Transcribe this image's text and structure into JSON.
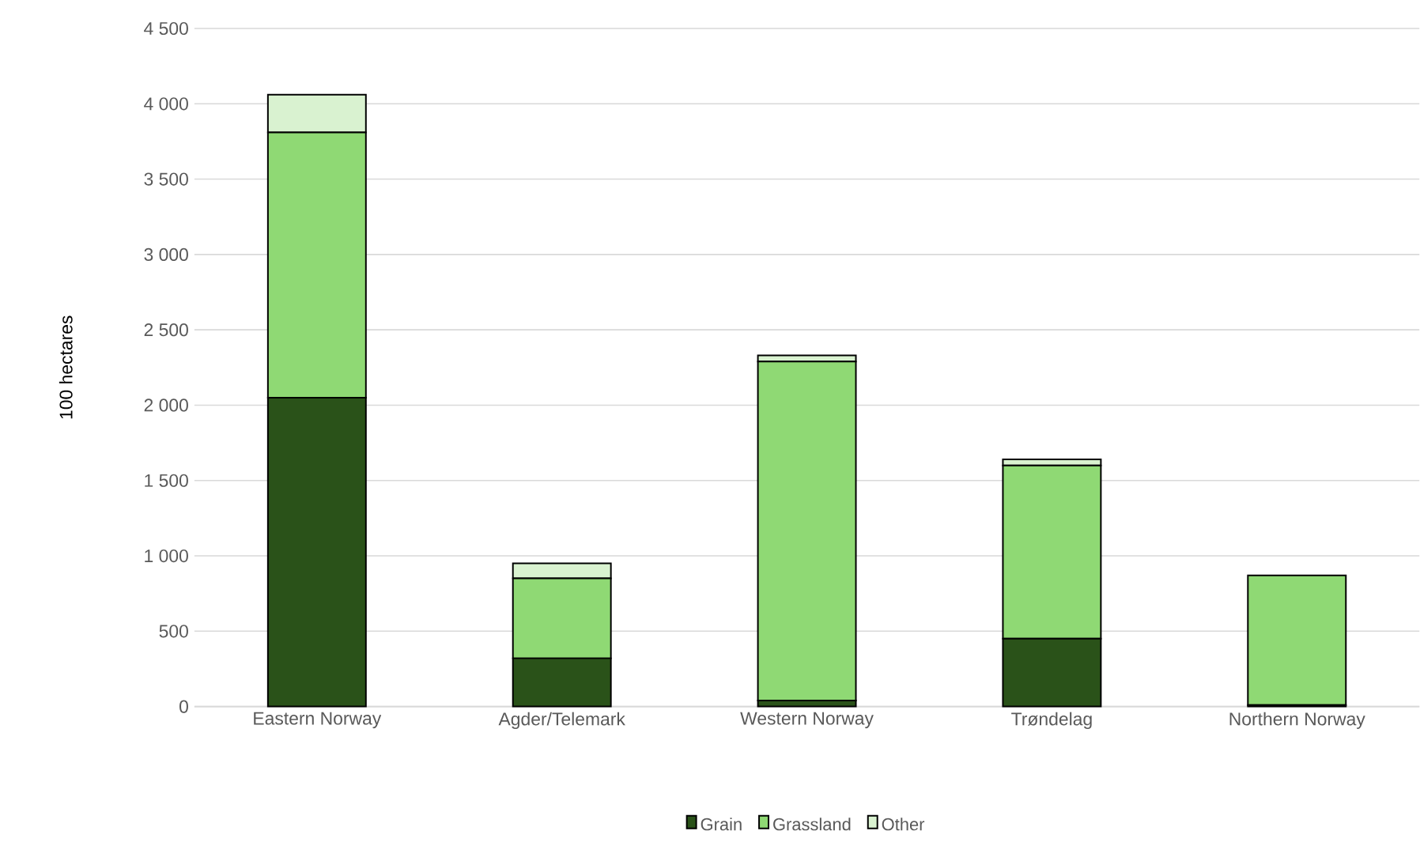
{
  "chart_data": {
    "type": "bar",
    "stacked": true,
    "ylabel": "100 hectares",
    "categories": [
      "Eastern Norway",
      "Agder/Telemark",
      "Western Norway",
      "Trøndelag",
      "Northern Norway"
    ],
    "series": [
      {
        "name": "Grain",
        "color": "#2a5219",
        "values": [
          2050,
          320,
          40,
          450,
          10
        ]
      },
      {
        "name": "Grassland",
        "color": "#8fd974",
        "values": [
          1760,
          530,
          2250,
          1150,
          860
        ]
      },
      {
        "name": "Other",
        "color": "#d9f2d0",
        "values": [
          250,
          100,
          40,
          40,
          null
        ]
      }
    ],
    "ylim": [
      0,
      4500
    ],
    "yticks": [
      {
        "value": 0,
        "label": "0"
      },
      {
        "value": 500,
        "label": "500"
      },
      {
        "value": 1000,
        "label": "1 000"
      },
      {
        "value": 1500,
        "label": "1 500"
      },
      {
        "value": 2000,
        "label": "2 000"
      },
      {
        "value": 2500,
        "label": "2 500"
      },
      {
        "value": 3000,
        "label": "3 000"
      },
      {
        "value": 3500,
        "label": "3 500"
      },
      {
        "value": 4000,
        "label": "4 000"
      },
      {
        "value": 4500,
        "label": "4 500"
      }
    ],
    "grid": "y",
    "legend": "bottom"
  }
}
